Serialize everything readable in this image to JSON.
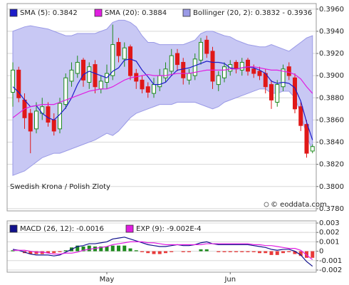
{
  "chart_data": [
    {
      "type": "candlestick",
      "title": "Swedish Krona / Polish Zloty",
      "credit": "© eoddata.com",
      "ylim": [
        0.3778,
        0.3965
      ],
      "yticks": [
        {
          "value": 0.378,
          "label": "0.3780"
        },
        {
          "value": 0.38,
          "label": "0.3800"
        },
        {
          "value": 0.382,
          "label": "0.3820"
        },
        {
          "value": 0.384,
          "label": "0.3840"
        },
        {
          "value": 0.386,
          "label": "0.3860"
        },
        {
          "value": 0.388,
          "label": "0.3880"
        },
        {
          "value": 0.39,
          "label": "0.3900"
        },
        {
          "value": 0.392,
          "label": "0.3920"
        },
        {
          "value": 0.394,
          "label": "0.3940"
        },
        {
          "value": 0.396,
          "label": "0.3960"
        }
      ],
      "grid": true,
      "ohlc": {
        "up_color": "#1e8a1e",
        "down_color": "#e01818",
        "open": [
          0.3885,
          0.3905,
          0.3878,
          0.3866,
          0.3852,
          0.3866,
          0.3872,
          0.386,
          0.3852,
          0.3874,
          0.3895,
          0.3902,
          0.3914,
          0.3894,
          0.391,
          0.3888,
          0.3894,
          0.39,
          0.393,
          0.3915,
          0.3926,
          0.3902,
          0.3896,
          0.389,
          0.3884,
          0.389,
          0.3898,
          0.3904,
          0.392,
          0.3912,
          0.3896,
          0.39,
          0.3914,
          0.3932,
          0.3922,
          0.3892,
          0.3898,
          0.3904,
          0.3912,
          0.3905,
          0.3914,
          0.3906,
          0.3904,
          0.3902,
          0.3892,
          0.3876,
          0.389,
          0.3908,
          0.3898,
          0.3872,
          0.3856,
          0.3832
        ],
        "high": [
          0.3912,
          0.3908,
          0.3884,
          0.387,
          0.3876,
          0.388,
          0.3876,
          0.3866,
          0.388,
          0.3902,
          0.3912,
          0.3918,
          0.3916,
          0.3912,
          0.3914,
          0.39,
          0.391,
          0.3946,
          0.3934,
          0.393,
          0.3928,
          0.3906,
          0.39,
          0.3894,
          0.3898,
          0.3906,
          0.3912,
          0.3924,
          0.3924,
          0.3916,
          0.3906,
          0.392,
          0.3934,
          0.3936,
          0.3926,
          0.3904,
          0.3912,
          0.3914,
          0.3914,
          0.3916,
          0.3916,
          0.391,
          0.3908,
          0.3906,
          0.3896,
          0.3896,
          0.391,
          0.3912,
          0.3902,
          0.3876,
          0.386,
          0.3838
        ],
        "low": [
          0.3872,
          0.3876,
          0.3852,
          0.383,
          0.3848,
          0.386,
          0.3854,
          0.3846,
          0.3848,
          0.387,
          0.389,
          0.3898,
          0.389,
          0.3888,
          0.3884,
          0.3884,
          0.3888,
          0.3896,
          0.3912,
          0.3908,
          0.3896,
          0.3888,
          0.3884,
          0.388,
          0.388,
          0.3886,
          0.3894,
          0.39,
          0.3904,
          0.3892,
          0.3892,
          0.3896,
          0.391,
          0.3916,
          0.3888,
          0.3886,
          0.3894,
          0.39,
          0.3902,
          0.39,
          0.39,
          0.3898,
          0.3896,
          0.3884,
          0.387,
          0.3872,
          0.3886,
          0.3896,
          0.3866,
          0.385,
          0.3826,
          0.383
        ],
        "close": [
          0.3905,
          0.388,
          0.3862,
          0.385,
          0.3868,
          0.3872,
          0.3858,
          0.385,
          0.3875,
          0.3898,
          0.3905,
          0.3912,
          0.3896,
          0.3908,
          0.389,
          0.3895,
          0.3902,
          0.3928,
          0.3918,
          0.3925,
          0.39,
          0.3895,
          0.3888,
          0.3885,
          0.3892,
          0.39,
          0.3906,
          0.3918,
          0.391,
          0.3898,
          0.3902,
          0.3915,
          0.393,
          0.392,
          0.3895,
          0.39,
          0.3908,
          0.391,
          0.3906,
          0.3912,
          0.3904,
          0.3902,
          0.39,
          0.389,
          0.3878,
          0.3892,
          0.3906,
          0.39,
          0.387,
          0.3855,
          0.383,
          0.3836
        ]
      },
      "band": {
        "name": "Bollinger (20, 2): 0.3832 - 0.3936",
        "color": "#c8c8f4",
        "edge_color": "#9a9ae6",
        "upper": [
          0.394,
          0.3942,
          0.3944,
          0.3945,
          0.3944,
          0.3943,
          0.3942,
          0.394,
          0.3938,
          0.3936,
          0.3936,
          0.3938,
          0.3938,
          0.3938,
          0.3938,
          0.394,
          0.3942,
          0.3948,
          0.395,
          0.395,
          0.3948,
          0.3944,
          0.3936,
          0.393,
          0.393,
          0.3928,
          0.3928,
          0.3928,
          0.3928,
          0.3928,
          0.393,
          0.3932,
          0.3938,
          0.394,
          0.394,
          0.3938,
          0.3936,
          0.3935,
          0.3932,
          0.393,
          0.3928,
          0.3927,
          0.3926,
          0.3926,
          0.3928,
          0.3926,
          0.3924,
          0.3922,
          0.3926,
          0.393,
          0.3934,
          0.3936
        ],
        "lower": [
          0.381,
          0.3812,
          0.3814,
          0.3818,
          0.3822,
          0.3826,
          0.3828,
          0.383,
          0.383,
          0.3832,
          0.3834,
          0.3836,
          0.3838,
          0.384,
          0.3842,
          0.3845,
          0.3848,
          0.3846,
          0.385,
          0.3856,
          0.3862,
          0.3866,
          0.3868,
          0.387,
          0.3872,
          0.3874,
          0.3874,
          0.3874,
          0.3876,
          0.3876,
          0.3876,
          0.3876,
          0.3874,
          0.3872,
          0.387,
          0.3872,
          0.3876,
          0.3878,
          0.388,
          0.3882,
          0.3884,
          0.3886,
          0.3888,
          0.3888,
          0.3884,
          0.3884,
          0.3886,
          0.3886,
          0.388,
          0.3866,
          0.3846,
          0.3832
        ]
      },
      "series": [
        {
          "name": "SMA (5): 0.3842",
          "color": "#1c1cc8",
          "values": [
            0.389,
            0.3885,
            0.3878,
            0.3872,
            0.3873,
            0.3866,
            0.3862,
            0.386,
            0.3865,
            0.3871,
            0.388,
            0.3892,
            0.3901,
            0.3904,
            0.3902,
            0.39,
            0.3898,
            0.3904,
            0.3907,
            0.3914,
            0.3915,
            0.3913,
            0.3905,
            0.3899,
            0.3892,
            0.3892,
            0.3894,
            0.39,
            0.3905,
            0.3906,
            0.3907,
            0.3909,
            0.3911,
            0.3913,
            0.3912,
            0.3912,
            0.3911,
            0.3907,
            0.3906,
            0.3907,
            0.3908,
            0.3907,
            0.3905,
            0.3902,
            0.3895,
            0.3893,
            0.3894,
            0.3893,
            0.3889,
            0.3877,
            0.3858,
            0.3842
          ]
        },
        {
          "name": "SMA (20): 0.3884",
          "color": "#e01ee0",
          "values": [
            0.3862,
            0.3866,
            0.387,
            0.3872,
            0.3873,
            0.3874,
            0.3874,
            0.3874,
            0.3876,
            0.3878,
            0.388,
            0.3882,
            0.3884,
            0.3886,
            0.3887,
            0.3888,
            0.3888,
            0.389,
            0.3893,
            0.3896,
            0.3898,
            0.3899,
            0.39,
            0.3901,
            0.39,
            0.39,
            0.39,
            0.3901,
            0.3902,
            0.3902,
            0.3902,
            0.3903,
            0.3904,
            0.3905,
            0.3905,
            0.3905,
            0.3905,
            0.3906,
            0.3906,
            0.3907,
            0.3908,
            0.3908,
            0.3907,
            0.3906,
            0.3905,
            0.3905,
            0.3904,
            0.3903,
            0.3901,
            0.3897,
            0.389,
            0.3884
          ]
        }
      ]
    },
    {
      "type": "macd",
      "categories": [
        null,
        null,
        null,
        null,
        null,
        null,
        null,
        null,
        null,
        null,
        null,
        null,
        null,
        null,
        null,
        null,
        "May",
        null,
        null,
        null,
        null,
        null,
        null,
        null,
        null,
        null,
        null,
        null,
        null,
        null,
        null,
        null,
        null,
        null,
        null,
        null,
        null,
        "Jun",
        null,
        null,
        null,
        null,
        null,
        null,
        null,
        null,
        null,
        null,
        null,
        null,
        null,
        null
      ],
      "ylim": [
        -0.00223,
        0.00323
      ],
      "yticks": [
        -0.002,
        -0.001,
        0,
        0.001,
        0.002,
        0.003
      ],
      "histogram": {
        "up_color": "#1e8a1e",
        "down_color": "#e83a3a",
        "values": [
          0.0001,
          0,
          -0.0002,
          -0.0003,
          -0.0003,
          -0.0003,
          -0.0002,
          -0.0002,
          -0.0001,
          0.0001,
          0.0004,
          0.0006,
          0.0005,
          0.0006,
          0.0005,
          0.0005,
          0.0005,
          0.0006,
          0.0006,
          0.0006,
          0.0003,
          0.0001,
          -0.0001,
          -0.0002,
          -0.0003,
          -0.0003,
          -0.0002,
          -0.0001,
          0,
          -0.0001,
          -0.0001,
          0,
          0.0002,
          0.0002,
          0,
          -0.0001,
          -0.0001,
          -0.0001,
          -0.0001,
          -0.0001,
          -0.0001,
          -0.0001,
          -0.0002,
          -0.0002,
          -0.0004,
          -0.0004,
          -0.0002,
          -0.0001,
          -0.0003,
          -0.0005,
          -0.0007,
          -0.0007
        ]
      },
      "series": [
        {
          "name": "MACD (26, 12): -0.0016",
          "color": "#10108c",
          "values": [
            0.0002,
            0.0001,
            -0.0001,
            -0.0003,
            -0.0004,
            -0.0004,
            -0.0004,
            -0.0005,
            -0.0004,
            -0.0001,
            0.0002,
            0.0005,
            0.0006,
            0.0008,
            0.0008,
            0.0009,
            0.001,
            0.0013,
            0.0014,
            0.0015,
            0.0013,
            0.0011,
            0.0009,
            0.0007,
            0.0006,
            0.0005,
            0.0005,
            0.0006,
            0.0007,
            0.0006,
            0.0006,
            0.0007,
            0.0009,
            0.001,
            0.0008,
            0.0007,
            0.0007,
            0.0007,
            0.0007,
            0.0007,
            0.0007,
            0.0006,
            0.0005,
            0.0004,
            0.0002,
            0.0001,
            0.0002,
            0.0002,
            0,
            -0.0004,
            -0.0011,
            -0.0016
          ]
        },
        {
          "name": "EXP (9): -9.002E-4",
          "color": "#e01ee0",
          "values": [
            0.0001,
            0.0001,
            0.0001,
            0,
            -0.0001,
            -0.0001,
            -0.0002,
            -0.0003,
            -0.0003,
            -0.0002,
            -0.0002,
            -0.0001,
            0.0001,
            0.0002,
            0.0003,
            0.0004,
            0.0005,
            0.0007,
            0.0008,
            0.0009,
            0.001,
            0.001,
            0.001,
            0.0009,
            0.0009,
            0.0008,
            0.0007,
            0.0007,
            0.0007,
            0.0007,
            0.0007,
            0.0007,
            0.0007,
            0.0008,
            0.0008,
            0.0008,
            0.0008,
            0.0008,
            0.0008,
            0.0008,
            0.0008,
            0.0007,
            0.0007,
            0.0006,
            0.0006,
            0.0005,
            0.0004,
            0.0003,
            0.0003,
            0.0001,
            -0.0004,
            -0.0009
          ]
        }
      ]
    }
  ]
}
